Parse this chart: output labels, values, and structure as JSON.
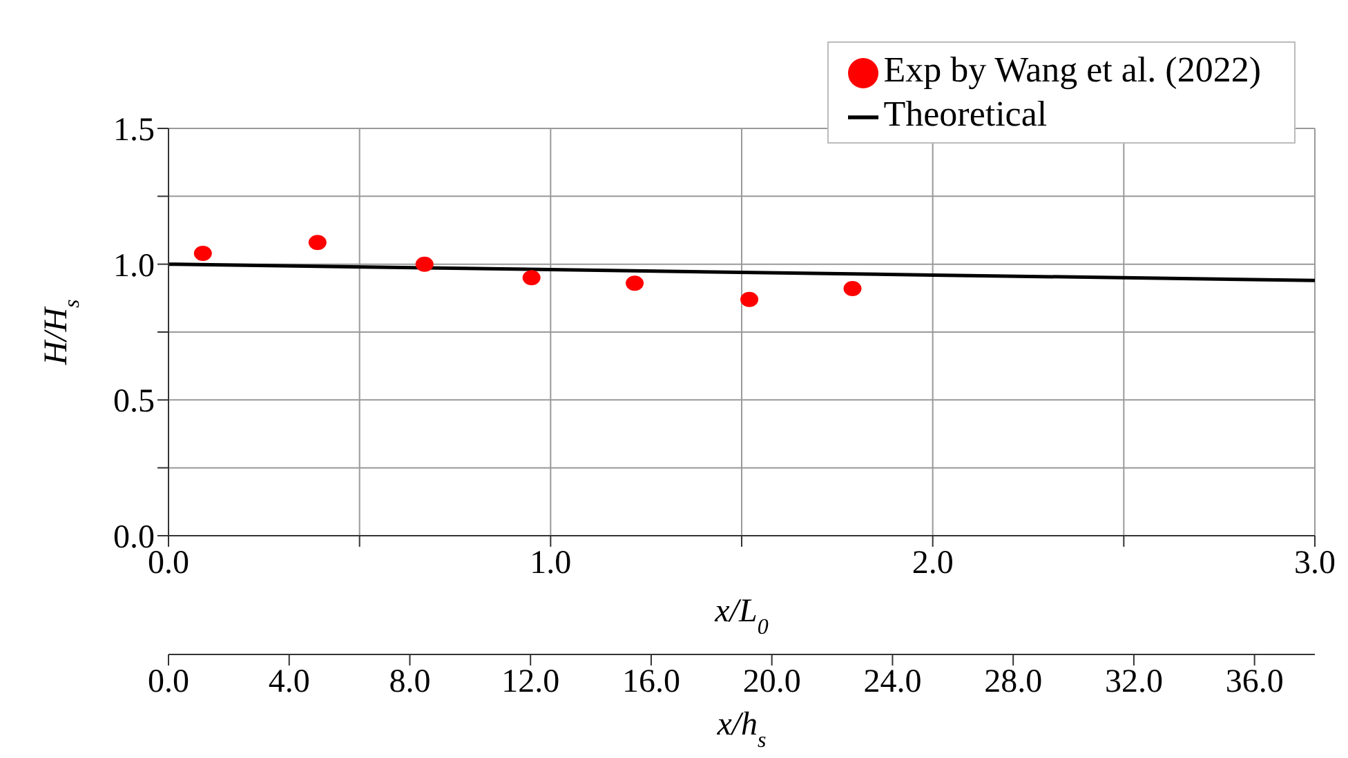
{
  "chart_data": {
    "type": "scatter",
    "xlabel": "x/L$_{0}$",
    "ylabel": "H/H$_{s}$",
    "x2label": "x/h$_{s}$",
    "series": [
      {
        "name": "Exp by Wang et al. (2022)",
        "color": "#ff0000",
        "marker": "circle",
        "x": [
          0.09,
          0.39,
          0.67,
          0.95,
          1.22,
          1.52,
          1.79
        ],
        "values": [
          1.04,
          1.08,
          1.0,
          0.95,
          0.93,
          0.87,
          0.91
        ]
      },
      {
        "name": "Theoretical",
        "type": "line",
        "color": "#000000",
        "marker": "none",
        "line_style": "solid",
        "x": [
          0,
          1,
          2,
          3
        ],
        "values": [
          1.0,
          0.98,
          0.96,
          0.94
        ]
      }
    ],
    "xlim": [
      0,
      3
    ],
    "xticks": [
      {
        "value": 0,
        "label": "0.0"
      },
      {
        "value": 0.5,
        "label": null
      },
      {
        "value": 1,
        "label": "1.0"
      },
      {
        "value": 1.5,
        "label": null
      },
      {
        "value": 2,
        "label": "2.0"
      },
      {
        "value": 2.5,
        "label": null
      },
      {
        "value": 3,
        "label": "3.0"
      }
    ],
    "ylim": [
      0,
      1.5
    ],
    "yticks": [
      {
        "value": 0,
        "label": "0.0"
      },
      {
        "value": 0.25,
        "label": null
      },
      {
        "value": 0.5,
        "label": "0.5"
      },
      {
        "value": 0.75,
        "label": null
      },
      {
        "value": 1,
        "label": "1.0"
      },
      {
        "value": 1.25,
        "label": null
      },
      {
        "value": 1.5,
        "label": "1.5"
      }
    ],
    "x2lim": [
      0,
      38
    ],
    "x2ticks": [
      {
        "value": 0,
        "label": "0.0"
      },
      {
        "value": 4,
        "label": "4.0"
      },
      {
        "value": 8,
        "label": "8.0"
      },
      {
        "value": 12,
        "label": "12.0"
      },
      {
        "value": 16,
        "label": "16.0"
      },
      {
        "value": 20,
        "label": "20.0"
      },
      {
        "value": 24,
        "label": "24.0"
      },
      {
        "value": 28,
        "label": "28.0"
      },
      {
        "value": 32,
        "label": "32.0"
      },
      {
        "value": 36,
        "label": "36.0"
      }
    ],
    "grid": true,
    "legend": "top right"
  }
}
